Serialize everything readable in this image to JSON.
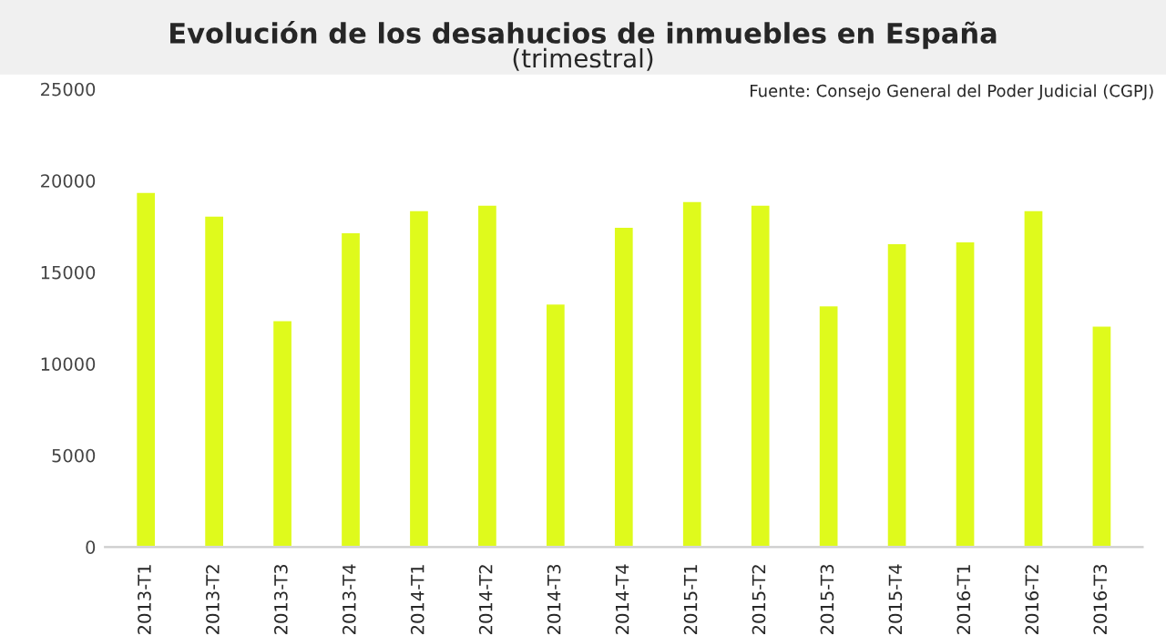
{
  "chart_data": {
    "type": "bar",
    "title": "Evolución de los desahucios de inmuebles en España",
    "subtitle": "(trimestral)",
    "annotations": [
      "Fuente: Consejo General del Poder Judicial (CGPJ)"
    ],
    "categories": [
      "2013-T1",
      "2013-T2",
      "2013-T3",
      "2013-T4",
      "2014-T1",
      "2014-T2",
      "2014-T3",
      "2014-T4",
      "2015-T1",
      "2015-T2",
      "2015-T3",
      "2015-T4",
      "2016-T1",
      "2016-T2",
      "2016-T3"
    ],
    "values": [
      19400,
      18100,
      12400,
      17200,
      18400,
      18700,
      13300,
      17500,
      18900,
      18700,
      13200,
      16600,
      16700,
      18400,
      12100
    ],
    "color": "#dffa1c",
    "ylim": [
      0,
      25000
    ],
    "yticks": [
      0,
      5000,
      10000,
      15000,
      20000,
      25000
    ],
    "grid": false
  }
}
